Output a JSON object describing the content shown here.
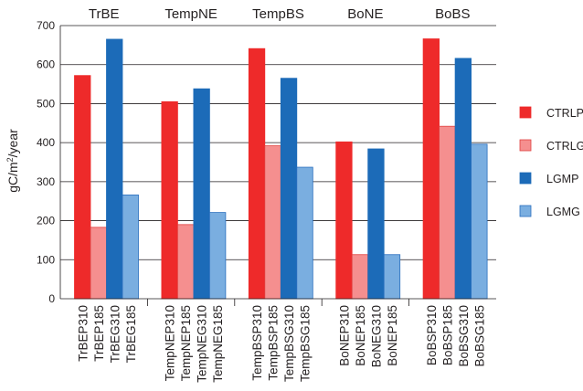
{
  "chart_data": {
    "type": "bar",
    "ylabel_parts": {
      "pre": "gC/m",
      "sup": "2",
      "post": "/year"
    },
    "ylim": [
      0,
      700
    ],
    "yticks": [
      "0",
      "100",
      "200",
      "300",
      "400",
      "500",
      "600",
      "700"
    ],
    "grid": true,
    "legend_position": "right",
    "groups": [
      {
        "label": "TrBE",
        "categories": [
          "TrBEP310",
          "TrBEP185",
          "TrBEG310",
          "TrBEG185"
        ],
        "values": [
          572,
          183,
          665,
          266
        ]
      },
      {
        "label": "TempNE",
        "categories": [
          "TempNEP310",
          "TempNEP185",
          "TempNEG310",
          "TempNEG185"
        ],
        "values": [
          505,
          190,
          538,
          221
        ]
      },
      {
        "label": "TempBS",
        "categories": [
          "TempBSP310",
          "TempBSP185",
          "TempBSG310",
          "TempBSG185"
        ],
        "values": [
          641,
          392,
          565,
          337
        ]
      },
      {
        "label": "BoNE",
        "categories": [
          "BoNEP310",
          "BoNEP185",
          "BoNEG310",
          "BoNEP185"
        ],
        "values": [
          402,
          113,
          384,
          113
        ]
      },
      {
        "label": "BoBS",
        "categories": [
          "BoBSP310",
          "BoBSP185",
          "BoBSG310",
          "BoBSG185"
        ],
        "values": [
          666,
          442,
          616,
          396
        ]
      }
    ],
    "series": [
      {
        "name": "CTRLP",
        "color": "#ee2a2a",
        "stroke": "#ee2a2a"
      },
      {
        "name": "CTRLG",
        "color": "#f58f8f",
        "stroke": "#e0403f"
      },
      {
        "name": "LGMP",
        "color": "#1c6bb8",
        "stroke": "#1c6bb8"
      },
      {
        "name": "LGMG",
        "color": "#7aaee0",
        "stroke": "#2a6fbe"
      }
    ]
  }
}
